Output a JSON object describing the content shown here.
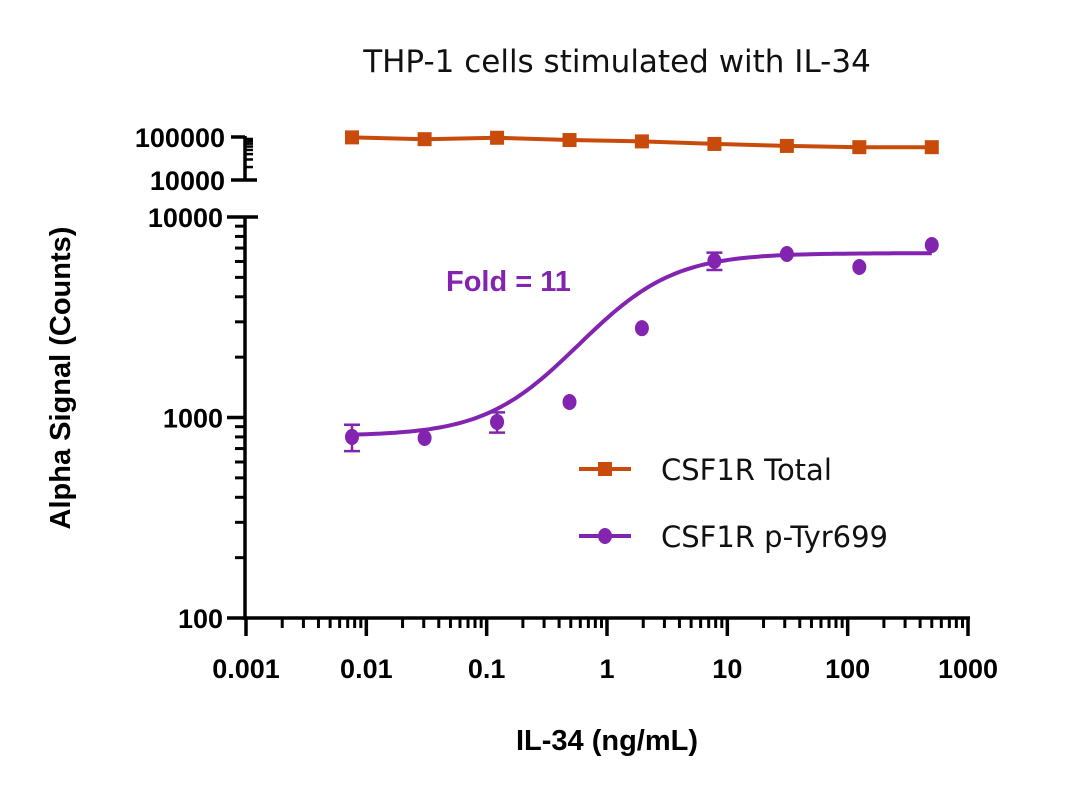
{
  "chart_data": {
    "type": "line",
    "title": "THP-1 cells stimulated with IL-34",
    "xlabel": "IL-34 (ng/mL)",
    "ylabel": "Alpha Signal (Counts)",
    "xscale": "log",
    "yscale": "log",
    "xlim": [
      0.001,
      1000
    ],
    "x_ticks": [
      0.001,
      0.01,
      0.1,
      1,
      10,
      100,
      1000
    ],
    "x_tick_labels": [
      "0.001",
      "0.01",
      "0.1",
      "1",
      "10",
      "100",
      "1000"
    ],
    "y_axis_segments": [
      {
        "name": "upper",
        "ylim": [
          10000,
          100000
        ],
        "ticks": [
          10000,
          100000
        ],
        "tick_labels": [
          "10000",
          "100000"
        ]
      },
      {
        "name": "lower",
        "ylim": [
          100,
          10000
        ],
        "ticks": [
          100,
          1000,
          10000
        ],
        "tick_labels": [
          "100",
          "1000",
          "10000"
        ]
      }
    ],
    "grid": false,
    "legend_position": "lower-right",
    "x": [
      0.0076,
      0.0305,
      0.122,
      0.488,
      1.95,
      7.81,
      31.25,
      125,
      500
    ],
    "series": [
      {
        "name": "CSF1R Total",
        "color": "#c84b0c",
        "marker": "square",
        "axis": "upper",
        "values": [
          98000,
          89000,
          96000,
          85000,
          79000,
          69000,
          62000,
          58000,
          58000
        ],
        "errors": [
          0,
          0,
          0,
          0,
          0,
          0,
          0,
          0,
          0
        ],
        "fit": "connect"
      },
      {
        "name": "CSF1R p-Tyr699",
        "color": "#8224b0",
        "marker": "circle",
        "axis": "lower",
        "values": [
          800,
          790,
          950,
          1195,
          2790,
          6040,
          6540,
          5630,
          7250
        ],
        "errors": [
          120,
          0,
          110,
          0,
          0,
          600,
          0,
          0,
          0
        ],
        "fit": "sigmoid",
        "fit_params": {
          "bottom": 810,
          "top": 6600,
          "ec50": 1.4,
          "hill": 1.2
        }
      }
    ],
    "annotations": [
      {
        "text": "Fold = 11",
        "color": "#8224b0",
        "series": "CSF1R p-Tyr699"
      }
    ]
  }
}
